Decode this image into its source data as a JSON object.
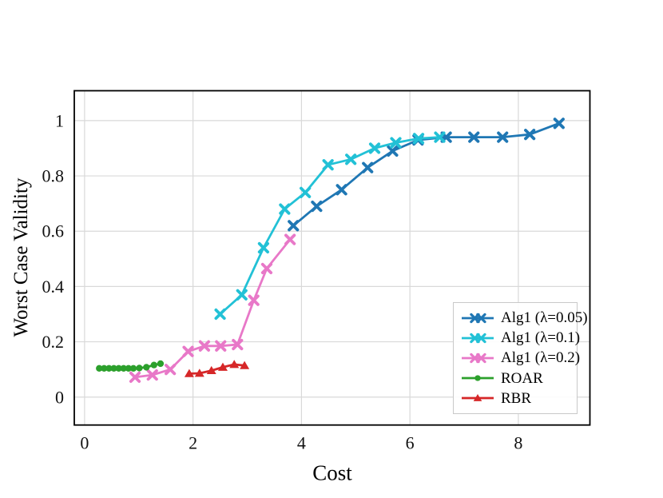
{
  "figure": {
    "background": "#ffffff"
  },
  "chart_data": {
    "type": "line",
    "title": "",
    "xlabel": "Cost",
    "ylabel": "Worst Case Validity",
    "xlim": [
      -0.19,
      9.32
    ],
    "ylim": [
      -0.101,
      1.108
    ],
    "xticks": [
      0,
      2,
      4,
      6,
      8
    ],
    "yticks": [
      0,
      0.2,
      0.4,
      0.6,
      0.8,
      1
    ],
    "grid": true,
    "grid_color": "#d9d9d9",
    "spine_color": "#000000",
    "tick_label_color": "#111111",
    "legend": {
      "position": "lower-right-inside",
      "border_color": "#c9c9c9"
    },
    "series": [
      {
        "name": "Alg1 (λ=0.05)",
        "color": "#1f77b4",
        "marker": "X",
        "points": [
          [
            3.85,
            0.62
          ],
          [
            4.28,
            0.69
          ],
          [
            4.74,
            0.75
          ],
          [
            5.22,
            0.83
          ],
          [
            5.68,
            0.89
          ],
          [
            6.15,
            0.93
          ],
          [
            6.67,
            0.94
          ],
          [
            7.18,
            0.94
          ],
          [
            7.71,
            0.94
          ],
          [
            8.21,
            0.95
          ],
          [
            8.75,
            0.99
          ]
        ]
      },
      {
        "name": "Alg1 (λ=0.1)",
        "color": "#22c1d6",
        "marker": "X",
        "points": [
          [
            2.5,
            0.3
          ],
          [
            2.9,
            0.37
          ],
          [
            3.3,
            0.54
          ],
          [
            3.69,
            0.68
          ],
          [
            4.07,
            0.74
          ],
          [
            4.49,
            0.84
          ],
          [
            4.91,
            0.86
          ],
          [
            5.35,
            0.9
          ],
          [
            5.74,
            0.92
          ],
          [
            6.16,
            0.935
          ],
          [
            6.55,
            0.94
          ]
        ]
      },
      {
        "name": "Alg1 (λ=0.2)",
        "color": "#e878c8",
        "marker": "X",
        "points": [
          [
            0.93,
            0.072
          ],
          [
            1.25,
            0.08
          ],
          [
            1.58,
            0.1
          ],
          [
            1.91,
            0.165
          ],
          [
            2.21,
            0.185
          ],
          [
            2.51,
            0.185
          ],
          [
            2.82,
            0.19
          ],
          [
            3.12,
            0.35
          ],
          [
            3.36,
            0.465
          ],
          [
            3.79,
            0.57
          ]
        ]
      },
      {
        "name": "ROAR",
        "color": "#2ca02c",
        "marker": "o",
        "points": [
          [
            0.27,
            0.104
          ],
          [
            0.36,
            0.104
          ],
          [
            0.45,
            0.104
          ],
          [
            0.54,
            0.104
          ],
          [
            0.63,
            0.104
          ],
          [
            0.72,
            0.104
          ],
          [
            0.81,
            0.104
          ],
          [
            0.9,
            0.104
          ],
          [
            1.01,
            0.105
          ],
          [
            1.14,
            0.108
          ],
          [
            1.28,
            0.116
          ],
          [
            1.4,
            0.121
          ]
        ]
      },
      {
        "name": "RBR",
        "color": "#d62728",
        "marker": "^",
        "points": [
          [
            1.93,
            0.085
          ],
          [
            2.12,
            0.086
          ],
          [
            2.34,
            0.096
          ],
          [
            2.55,
            0.108
          ],
          [
            2.76,
            0.118
          ],
          [
            2.95,
            0.114
          ]
        ]
      }
    ]
  }
}
